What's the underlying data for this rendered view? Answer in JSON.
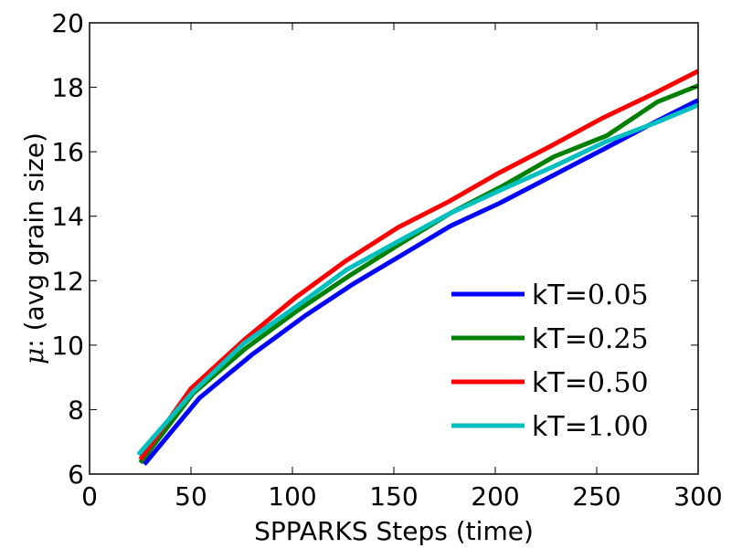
{
  "chart_data": {
    "type": "line",
    "title": "",
    "xlabel": "SPPARKS Steps (time)",
    "ylabel_symbol": "μ",
    "ylabel_text": ": (avg grain size)",
    "xlim": [
      0,
      300
    ],
    "ylim": [
      6,
      20
    ],
    "xticks": [
      0,
      50,
      100,
      150,
      200,
      250,
      300
    ],
    "yticks": [
      6,
      8,
      10,
      12,
      14,
      16,
      18,
      20
    ],
    "grid": false,
    "legend_position": "lower-right",
    "series": [
      {
        "name": "kT=0.05",
        "name_prefix": "kT=",
        "name_value": "0.05",
        "color": "#0000ff",
        "x": [
          27,
          54,
          80,
          106,
          130,
          154,
          178,
          202,
          228,
          254,
          278,
          300
        ],
        "y": [
          6.3,
          8.35,
          9.7,
          10.9,
          11.9,
          12.8,
          13.7,
          14.4,
          15.25,
          16.1,
          16.9,
          17.6
        ]
      },
      {
        "name": "kT=0.25",
        "name_prefix": "kT=",
        "name_value": "0.25",
        "color": "#008000",
        "x": [
          25,
          51,
          77,
          102,
          128,
          152,
          178,
          204,
          229,
          255,
          280,
          300
        ],
        "y": [
          6.35,
          8.5,
          9.9,
          11.05,
          12.15,
          13.1,
          14.1,
          14.95,
          15.85,
          16.5,
          17.55,
          18.05
        ]
      },
      {
        "name": "kT=0.50",
        "name_prefix": "kT=",
        "name_value": "0.50",
        "color": "#ff0000",
        "x": [
          25,
          50,
          76,
          101,
          126,
          152,
          177,
          202,
          228,
          253,
          278,
          300
        ],
        "y": [
          6.45,
          8.65,
          10.15,
          11.45,
          12.6,
          13.65,
          14.45,
          15.35,
          16.2,
          17.05,
          17.8,
          18.5
        ]
      },
      {
        "name": "kT=1.00",
        "name_prefix": "kT=",
        "name_value": "1.00",
        "color": "#00bfbf",
        "x": [
          24,
          51,
          76,
          103,
          127,
          153,
          178,
          204,
          229,
          254,
          279,
          300
        ],
        "y": [
          6.6,
          8.55,
          10.05,
          11.25,
          12.35,
          13.25,
          14.1,
          14.85,
          15.55,
          16.3,
          16.9,
          17.45
        ]
      }
    ]
  }
}
